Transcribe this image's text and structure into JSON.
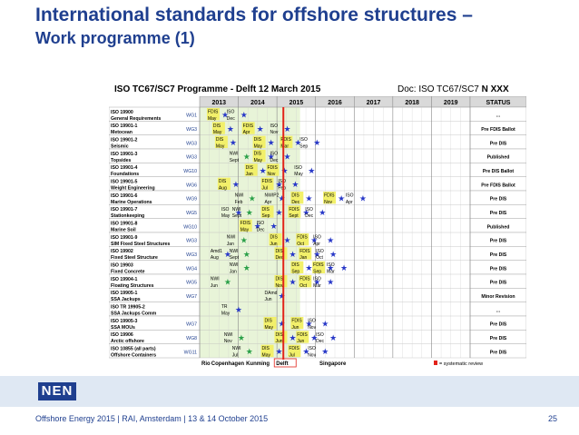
{
  "slide": {
    "title_line1": "International standards for offshore structures –",
    "title_line2": "Work programme (1)",
    "footer": "Offshore Energy 2015 | RAI, Amsterdam | 13 & 14 October 2015",
    "page": "25",
    "logo": "NEN"
  },
  "programme": {
    "title": "ISO TC67/SC7 Programme - Delft 12 March 2015",
    "doc_prefix": "Doc: ISO TC67/SC7",
    "doc_number": "N XXX",
    "years": [
      "2013",
      "2014",
      "2015",
      "2016",
      "2017",
      "2018",
      "2019"
    ],
    "status_header": "STATUS",
    "rows": [
      {
        "std": "ISO 19900",
        "name": "General Requirements",
        "wg": "WG1",
        "status": "..."
      },
      {
        "std": "ISO 19901-1",
        "name": "Metocean",
        "wg": "WG3",
        "status": "Pre FDIS Ballot"
      },
      {
        "std": "ISO 19901-2",
        "name": "Seismic",
        "wg": "WG3",
        "status": "Pre DIS"
      },
      {
        "std": "ISO 19901-3",
        "name": "Topsides",
        "wg": "WG3",
        "status": "Published"
      },
      {
        "std": "ISO 19901-4",
        "name": "Foundations",
        "wg": "WG10",
        "status": "Pre DIS Ballot"
      },
      {
        "std": "ISO 19901-5",
        "name": "Weight Engineering",
        "wg": "WG6",
        "status": "Pre FDIS Ballot"
      },
      {
        "std": "ISO 19901-6",
        "name": "Marine Operations",
        "wg": "WG9",
        "status": "Pre DIS"
      },
      {
        "std": "ISO 19901-7",
        "name": "Stationkeeping",
        "wg": "WG5",
        "status": "Pre DIS"
      },
      {
        "std": "ISO 19901-8",
        "name": "Marine Soil",
        "wg": "WG10",
        "status": "Published"
      },
      {
        "std": "ISO 19901-9",
        "name": "SIM Fixed Steel Structures",
        "wg": "WG3",
        "status": "Pre DIS"
      },
      {
        "std": "ISO 19902",
        "name": "Fixed Steel Structure",
        "wg": "WG3",
        "status": "Pre DIS"
      },
      {
        "std": "ISO 19903",
        "name": "Fixed Concrete",
        "wg": "WG4",
        "status": "Pre DIS"
      },
      {
        "std": "ISO 19904-1",
        "name": "Floating Structures",
        "wg": "WG5",
        "status": "Pre DIS"
      },
      {
        "std": "ISO 19905-1",
        "name": "SSA Jackups",
        "wg": "WG7",
        "status": "Minor Revision"
      },
      {
        "std": "ISO TR 19905-2",
        "name": "SSA Jackups Comm",
        "wg": "",
        "status": "..."
      },
      {
        "std": "ISO 19905-3",
        "name": "SSA MOUs",
        "wg": "WG7",
        "status": "Pre DIS"
      },
      {
        "std": "ISO 19906",
        "name": "Arctic offshore",
        "wg": "WG8",
        "status": "Pre DIS"
      },
      {
        "std": "ISO 10855 (all parts)",
        "name": "Offshore Containers",
        "wg": "WG11",
        "status": "Pre DIS"
      }
    ],
    "milestones": [
      {
        "row": 0,
        "x": 0.03,
        "lines": [
          "FDIS",
          "May"
        ]
      },
      {
        "row": 0,
        "x": 0.1,
        "lines": [
          "ISO",
          "Dec"
        ]
      },
      {
        "row": 1,
        "x": 0.05,
        "lines": [
          "DIS",
          "May"
        ]
      },
      {
        "row": 1,
        "x": 0.16,
        "lines": [
          "FDIS",
          "Apr"
        ]
      },
      {
        "row": 1,
        "x": 0.26,
        "lines": [
          "ISO",
          "Nov"
        ]
      },
      {
        "row": 2,
        "x": 0.06,
        "lines": [
          "DIS",
          "May"
        ]
      },
      {
        "row": 2,
        "x": 0.2,
        "lines": [
          "DIS",
          "May"
        ]
      },
      {
        "row": 2,
        "x": 0.3,
        "lines": [
          "FDIS",
          "Mar"
        ]
      },
      {
        "row": 2,
        "x": 0.37,
        "lines": [
          "ISO",
          "Sep"
        ]
      },
      {
        "row": 3,
        "x": 0.11,
        "lines": [
          "NWI",
          "Sept"
        ]
      },
      {
        "row": 3,
        "x": 0.2,
        "lines": [
          "DIS",
          "May"
        ]
      },
      {
        "row": 3,
        "x": 0.26,
        "lines": [
          "ISO",
          "Dec"
        ]
      },
      {
        "row": 4,
        "x": 0.17,
        "lines": [
          "DIS",
          "Jan"
        ]
      },
      {
        "row": 4,
        "x": 0.25,
        "lines": [
          "FDIS",
          "Nov"
        ]
      },
      {
        "row": 4,
        "x": 0.35,
        "lines": [
          "ISO",
          "May"
        ]
      },
      {
        "row": 5,
        "x": 0.07,
        "lines": [
          "DIS",
          "Aug"
        ]
      },
      {
        "row": 5,
        "x": 0.23,
        "lines": [
          "FDIS",
          "Jul"
        ]
      },
      {
        "row": 5,
        "x": 0.29,
        "lines": [
          "ISO",
          "Feb"
        ]
      },
      {
        "row": 6,
        "x": 0.13,
        "lines": [
          "NWI",
          "Feb"
        ]
      },
      {
        "row": 6,
        "x": 0.24,
        "lines": [
          "NWIP2",
          "Apr"
        ]
      },
      {
        "row": 6,
        "x": 0.34,
        "lines": [
          "DIS",
          "Dec"
        ]
      },
      {
        "row": 6,
        "x": 0.46,
        "lines": [
          "FDIS",
          "Nov"
        ]
      },
      {
        "row": 6,
        "x": 0.54,
        "lines": [
          "ISO",
          "Apr"
        ]
      },
      {
        "row": 7,
        "x": 0.08,
        "lines": [
          "ISO",
          "May"
        ]
      },
      {
        "row": 7,
        "x": 0.12,
        "lines": [
          "NWI",
          "Sept"
        ]
      },
      {
        "row": 7,
        "x": 0.23,
        "lines": [
          "DIS",
          "Sep"
        ]
      },
      {
        "row": 7,
        "x": 0.33,
        "lines": [
          "FDIS",
          "Sept"
        ]
      },
      {
        "row": 7,
        "x": 0.39,
        "lines": [
          "ISO",
          "Dec"
        ]
      },
      {
        "row": 8,
        "x": 0.15,
        "lines": [
          "FDIS",
          "May"
        ]
      },
      {
        "row": 8,
        "x": 0.21,
        "lines": [
          "ISO",
          "Dec"
        ]
      },
      {
        "row": 9,
        "x": 0.1,
        "lines": [
          "NWI",
          "Jan"
        ]
      },
      {
        "row": 9,
        "x": 0.26,
        "lines": [
          "DIS",
          "Jun"
        ]
      },
      {
        "row": 9,
        "x": 0.36,
        "lines": [
          "FDIS",
          "Oct"
        ]
      },
      {
        "row": 9,
        "x": 0.42,
        "lines": [
          "ISO",
          "Apr"
        ]
      },
      {
        "row": 10,
        "x": 0.04,
        "lines": [
          "Amd1",
          "Aug"
        ]
      },
      {
        "row": 10,
        "x": 0.11,
        "lines": [
          "NWI",
          "Sept"
        ]
      },
      {
        "row": 10,
        "x": 0.28,
        "lines": [
          "DIS",
          "Dec"
        ]
      },
      {
        "row": 10,
        "x": 0.37,
        "lines": [
          "FDIS",
          "Jan"
        ]
      },
      {
        "row": 10,
        "x": 0.43,
        "lines": [
          "ISO",
          "Oct"
        ]
      },
      {
        "row": 11,
        "x": 0.11,
        "lines": [
          "NWI",
          "Jan"
        ]
      },
      {
        "row": 11,
        "x": 0.34,
        "lines": [
          "DIS",
          "Sep"
        ]
      },
      {
        "row": 11,
        "x": 0.42,
        "lines": [
          "FDIS",
          "Sep"
        ]
      },
      {
        "row": 11,
        "x": 0.47,
        "lines": [
          "ISO",
          "Mar"
        ]
      },
      {
        "row": 12,
        "x": 0.04,
        "lines": [
          "NWI",
          "Jun"
        ]
      },
      {
        "row": 12,
        "x": 0.28,
        "lines": [
          "DIS",
          "Nov"
        ]
      },
      {
        "row": 12,
        "x": 0.37,
        "lines": [
          "FDIS",
          "Oct"
        ]
      },
      {
        "row": 12,
        "x": 0.42,
        "lines": [
          "ISO",
          "Mar"
        ]
      },
      {
        "row": 13,
        "x": 0.24,
        "lines": [
          "DAmd",
          "Jun"
        ]
      },
      {
        "row": 14,
        "x": 0.08,
        "lines": [
          "TR",
          "May"
        ]
      },
      {
        "row": 15,
        "x": 0.24,
        "lines": [
          "DIS",
          "May"
        ]
      },
      {
        "row": 15,
        "x": 0.34,
        "lines": [
          "FDIS",
          "Jun"
        ]
      },
      {
        "row": 15,
        "x": 0.4,
        "lines": [
          "ISO",
          "Nov"
        ]
      },
      {
        "row": 16,
        "x": 0.09,
        "lines": [
          "NWI",
          "Nov"
        ]
      },
      {
        "row": 16,
        "x": 0.28,
        "lines": [
          "DIS",
          "Jun"
        ]
      },
      {
        "row": 16,
        "x": 0.36,
        "lines": [
          "FDIS",
          "Jun"
        ]
      },
      {
        "row": 16,
        "x": 0.43,
        "lines": [
          "ISO",
          "Dec"
        ]
      },
      {
        "row": 17,
        "x": 0.12,
        "lines": [
          "NWI",
          "Jul"
        ]
      },
      {
        "row": 17,
        "x": 0.23,
        "lines": [
          "DIS",
          "May"
        ]
      },
      {
        "row": 17,
        "x": 0.33,
        "lines": [
          "FDIS",
          "Jul"
        ]
      },
      {
        "row": 17,
        "x": 0.4,
        "lines": [
          "ISO",
          "Nov"
        ]
      }
    ],
    "meetings": [
      "Rio",
      "Copenhagen",
      "Kunming",
      "Delft",
      "Singapore"
    ],
    "legend": "= systematic review",
    "colors": {
      "grid_green": "#e8f4d8",
      "ballot_yellow": "#f2f06a",
      "star_blue": "#2838c8",
      "star_green": "#2aa048",
      "today_red": "#e2231a"
    }
  }
}
